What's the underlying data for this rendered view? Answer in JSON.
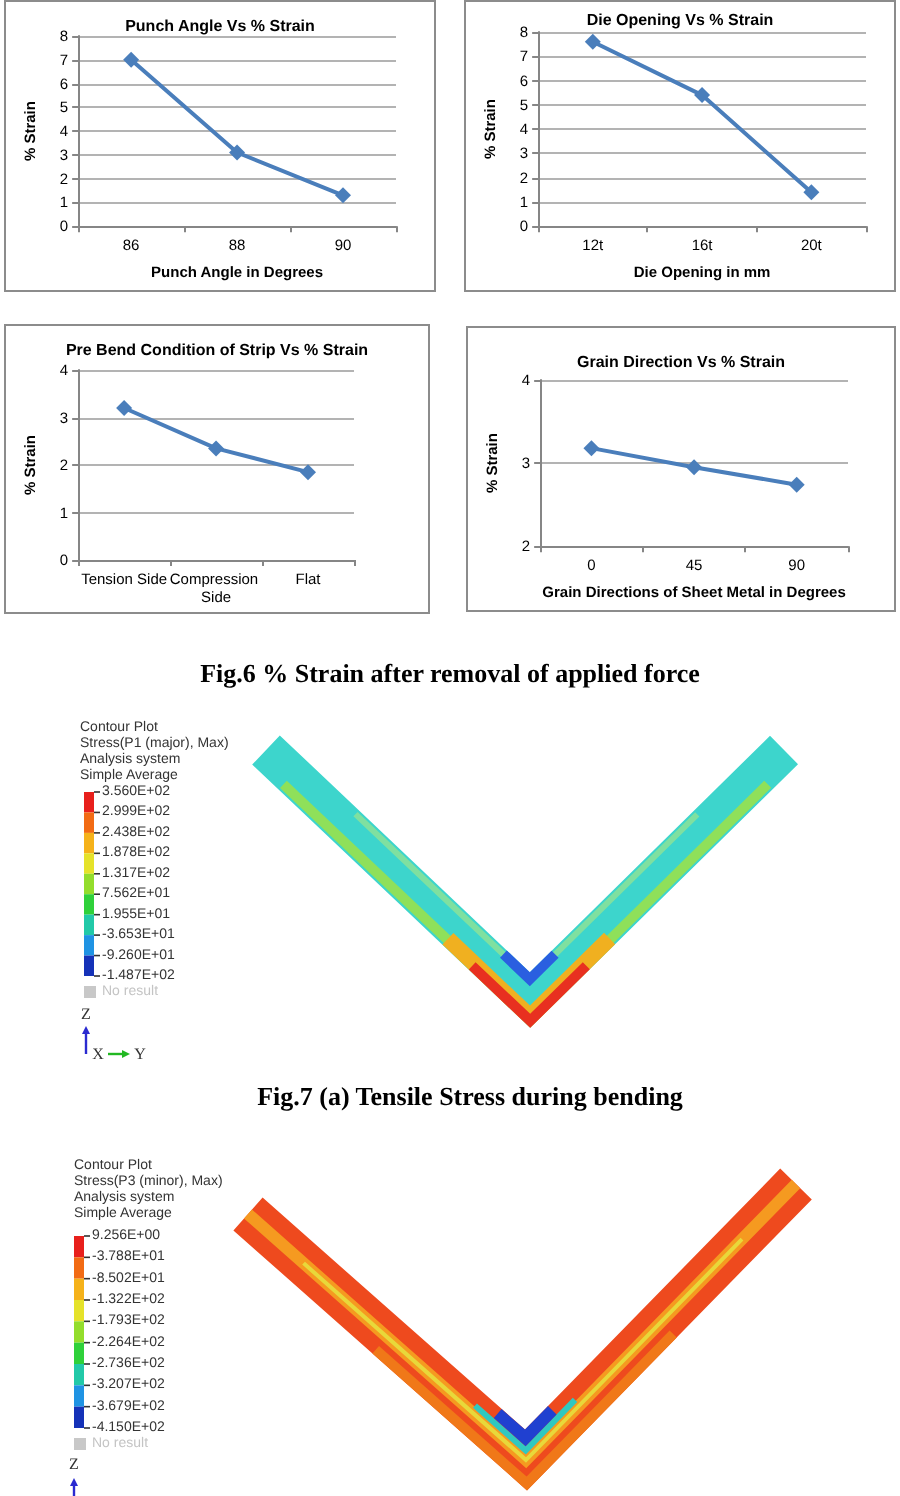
{
  "chart_data": [
    {
      "type": "line",
      "title": "Punch Angle Vs % Strain",
      "xlabel": "Punch Angle in Degrees",
      "ylabel": "% Strain",
      "categories": [
        "86",
        "88",
        "90"
      ],
      "values": [
        7.0,
        3.1,
        1.3
      ],
      "color": "#4a7ebb",
      "ylim": [
        0,
        8
      ],
      "yticks": [
        0,
        1,
        2,
        3,
        4,
        5,
        6,
        7,
        8
      ],
      "grid": "y",
      "marker": "diamond"
    },
    {
      "type": "line",
      "title": "Die Opening Vs % Strain",
      "xlabel": "Die Opening in mm",
      "ylabel": "% Strain",
      "categories": [
        "12t",
        "16t",
        "20t"
      ],
      "values": [
        7.6,
        5.4,
        1.4
      ],
      "color": "#4a7ebb",
      "ylim": [
        0,
        8
      ],
      "yticks": [
        0,
        1,
        2,
        3,
        4,
        5,
        6,
        7,
        8
      ],
      "grid": "y",
      "marker": "diamond"
    },
    {
      "type": "line",
      "title": "Pre Bend Condition of Strip Vs % Strain",
      "ylabel": "% Strain",
      "categories": [
        "Tension Side",
        "Compression Side",
        "Flat"
      ],
      "values": [
        3.2,
        2.35,
        1.85
      ],
      "color": "#4a7ebb",
      "ylim": [
        0,
        4
      ],
      "yticks": [
        0,
        1,
        2,
        3,
        4
      ],
      "grid": "y",
      "marker": "diamond"
    },
    {
      "type": "line",
      "title": "Grain Direction Vs % Strain",
      "xlabel": "Grain Directions of Sheet Metal in Degrees",
      "ylabel": "% Strain",
      "categories": [
        "0",
        "45",
        "90"
      ],
      "values": [
        3.18,
        2.95,
        2.74
      ],
      "color": "#4a7ebb",
      "ylim": [
        2,
        4
      ],
      "yticks": [
        2,
        3,
        4
      ],
      "grid": "y",
      "marker": "diamond"
    },
    {
      "type": "other",
      "annotations": [
        "Fig.6 % Strain after removal of applied force"
      ]
    },
    {
      "type": "other",
      "title": "Contour Plot",
      "annotations": [
        "Stress(P1 (major), Max)",
        "Analysis system",
        "Simple Average",
        "3.560E+02",
        "2.999E+02",
        "2.438E+02",
        "1.878E+02",
        "1.317E+02",
        "7.562E+01",
        "1.955E+01",
        "-3.653E+01",
        "-9.260E+01",
        "-1.487E+02",
        "No result",
        "Z",
        "X",
        "Y",
        "Fig.7 (a) Tensile Stress during bending"
      ]
    },
    {
      "type": "other",
      "title": "Contour Plot",
      "annotations": [
        "Stress(P3 (minor), Max)",
        "Analysis system",
        "Simple Average",
        "9.256E+00",
        "-3.788E+01",
        "-8.502E+01",
        "-1.322E+02",
        "-1.793E+02",
        "-2.264E+02",
        "-2.736E+02",
        "-3.207E+02",
        "-3.679E+02",
        "-4.150E+02",
        "No result",
        "Z"
      ]
    }
  ]
}
